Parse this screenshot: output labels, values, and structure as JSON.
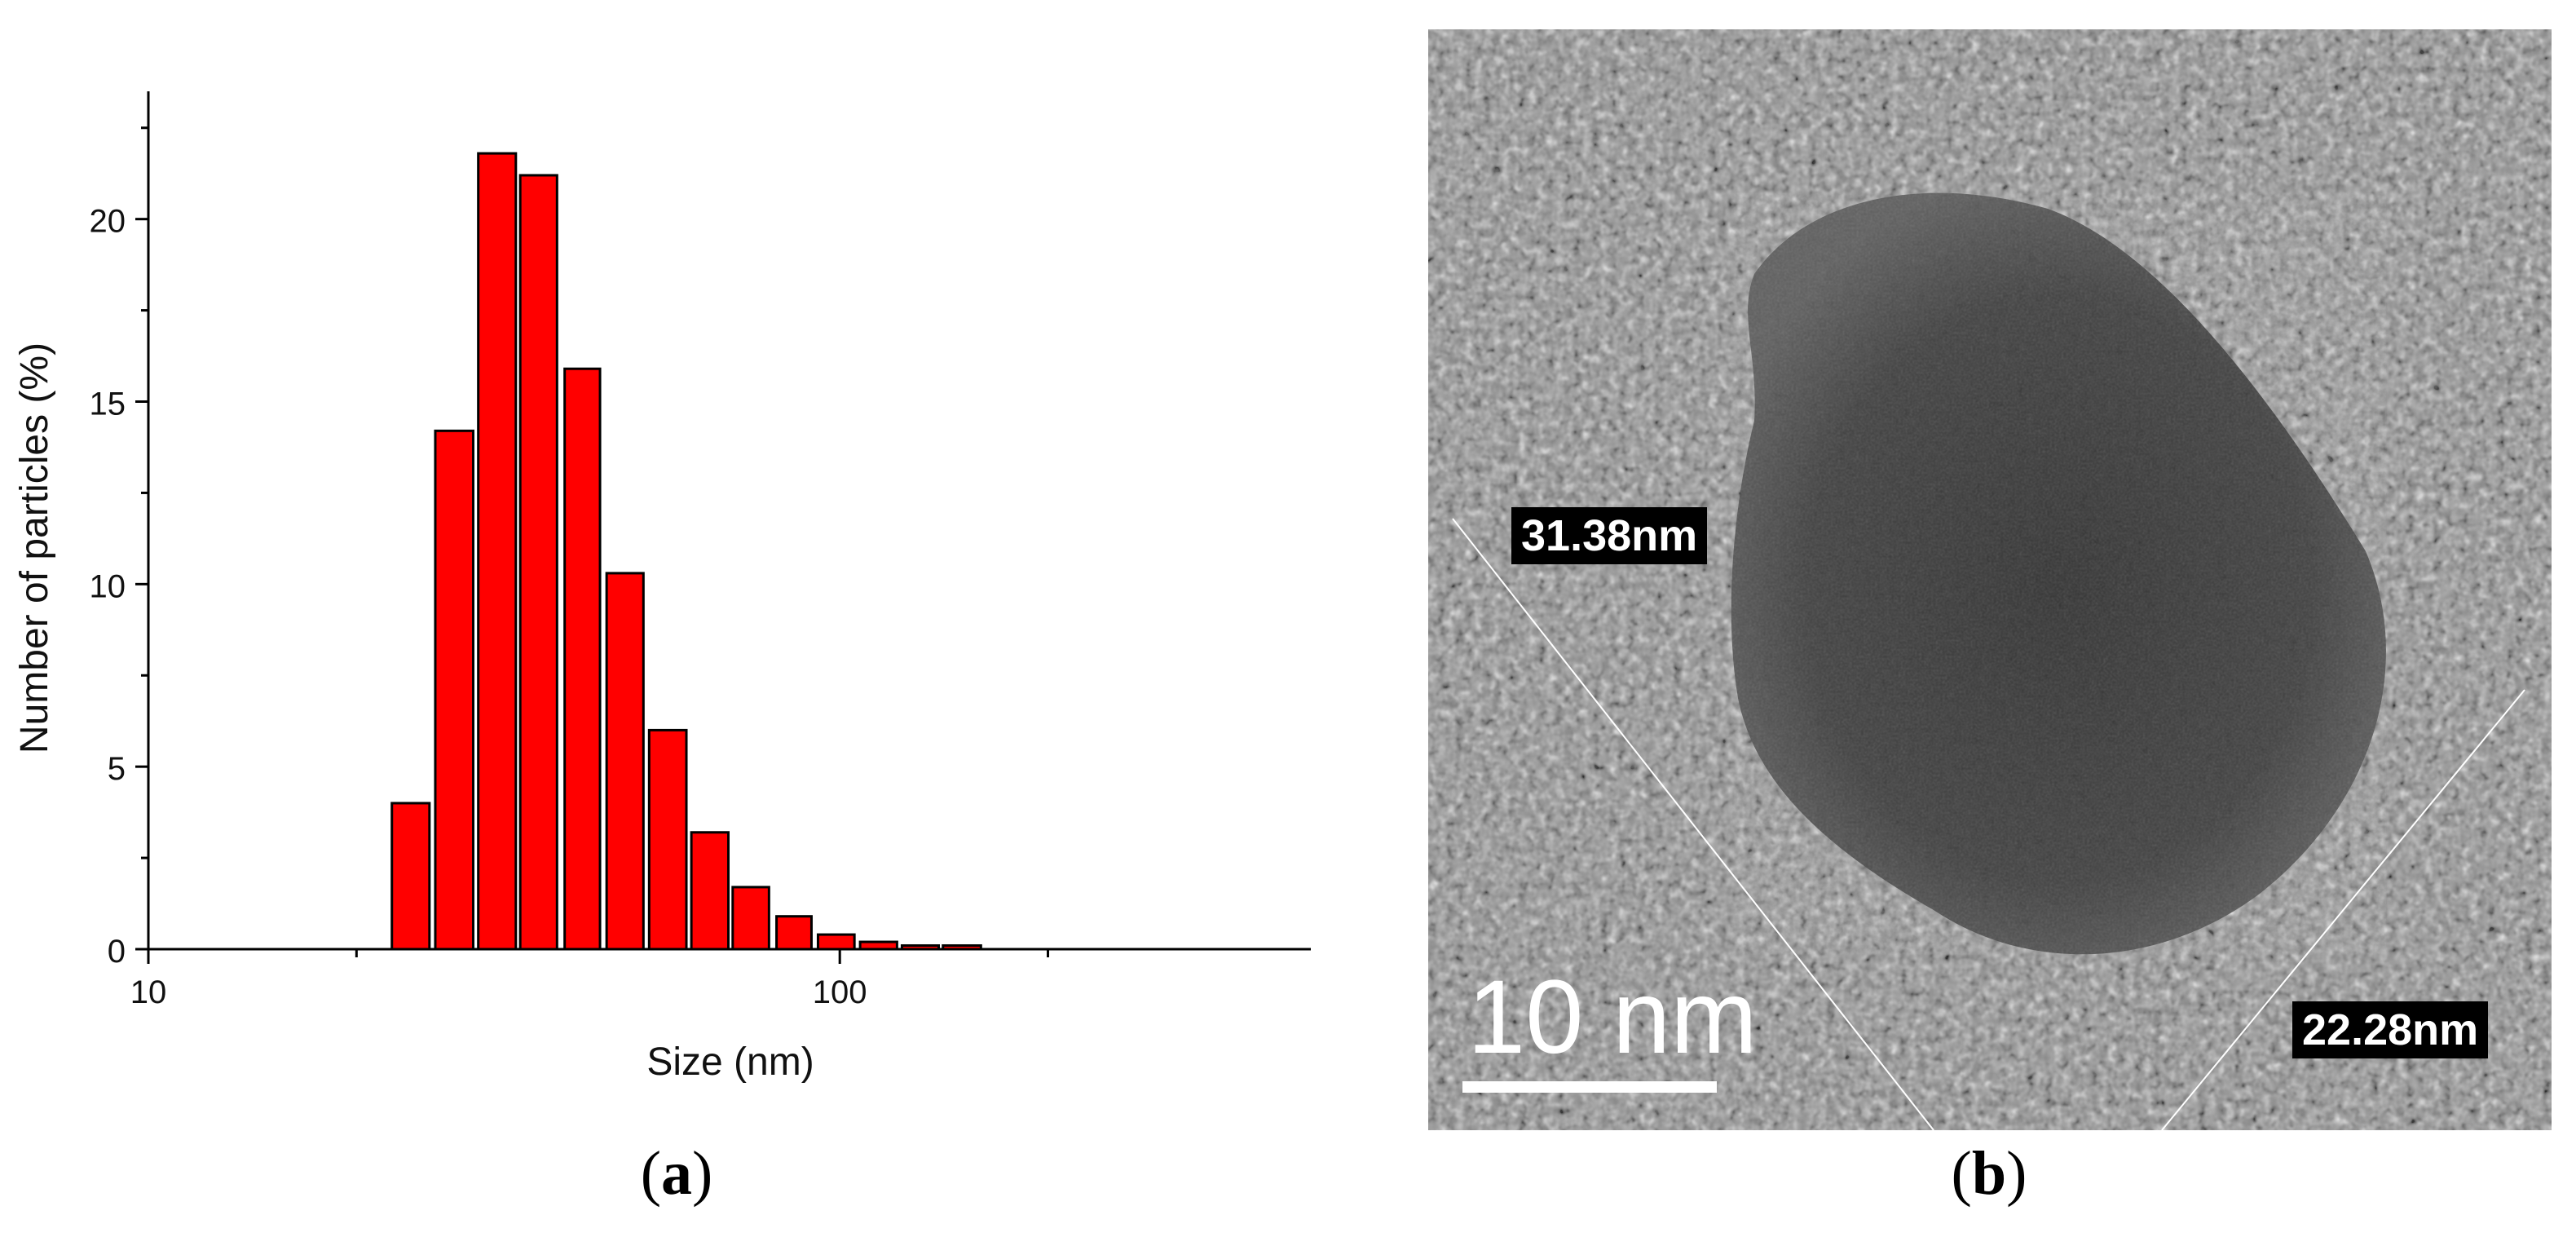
{
  "chart_data": {
    "type": "bar",
    "xscale": "log",
    "xlabel": "Size (nm)",
    "ylabel": "Number of particles (%)",
    "xlim": [
      10,
      480
    ],
    "ylim": [
      0,
      23.5
    ],
    "xticks": [
      10,
      100
    ],
    "yticks": [
      0,
      5,
      10,
      15,
      20
    ],
    "bar_color": "#ff0000",
    "bins": [
      {
        "x0": 22.5,
        "x1": 25.5,
        "value": 4.0
      },
      {
        "x0": 26.0,
        "x1": 29.5,
        "value": 14.2
      },
      {
        "x0": 30.0,
        "x1": 34.0,
        "value": 21.8
      },
      {
        "x0": 34.5,
        "x1": 39.0,
        "value": 21.2
      },
      {
        "x0": 40.0,
        "x1": 45.0,
        "value": 15.9
      },
      {
        "x0": 46.0,
        "x1": 52.0,
        "value": 10.3
      },
      {
        "x0": 53.0,
        "x1": 60.0,
        "value": 6.0
      },
      {
        "x0": 61.0,
        "x1": 69.0,
        "value": 3.2
      },
      {
        "x0": 70.0,
        "x1": 79.0,
        "value": 1.7
      },
      {
        "x0": 81.0,
        "x1": 91.0,
        "value": 0.9
      },
      {
        "x0": 93.0,
        "x1": 105.0,
        "value": 0.4
      },
      {
        "x0": 107.0,
        "x1": 121.0,
        "value": 0.2
      },
      {
        "x0": 123.0,
        "x1": 139.0,
        "value": 0.1
      },
      {
        "x0": 141.0,
        "x1": 160.0,
        "value": 0.1
      }
    ]
  },
  "panels": {
    "a_label": "a",
    "b_label": "b"
  },
  "tem_image": {
    "measure_1": "31.38nm",
    "measure_2": "22.28nm",
    "scale_bar": "10 nm"
  }
}
